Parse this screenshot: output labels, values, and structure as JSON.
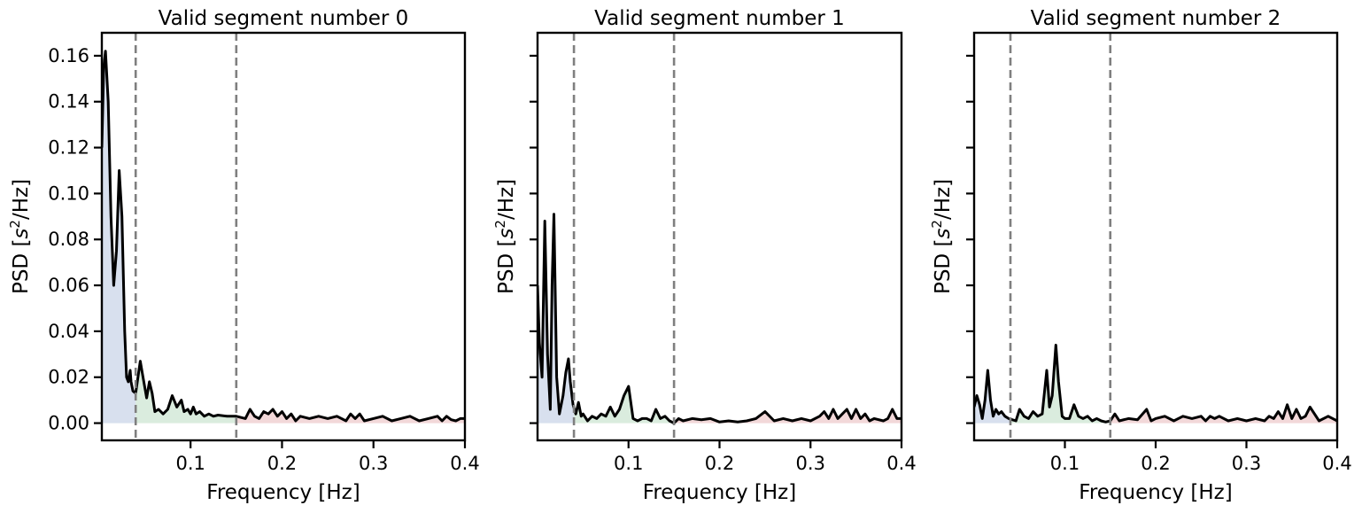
{
  "colors": {
    "psd_line": "#000000",
    "vlf_fill": "#4c72b0",
    "lf_fill": "#55a868",
    "hf_fill": "#c44e52",
    "band_line": "#7f7f7f"
  },
  "axis_text": {
    "ylabel_prefix": "PSD [",
    "ylabel_base": "s",
    "ylabel_sup": "2",
    "ylabel_suffix": "/Hz]"
  },
  "chart_data": [
    {
      "type": "line",
      "title": "Valid segment number 0",
      "xlabel": "Frequency [Hz]",
      "ylabel": "PSD [s^2/Hz]",
      "xlim": [
        0.003,
        0.4
      ],
      "ylim": [
        -0.0075,
        0.17
      ],
      "xticks": [
        0.1,
        0.2,
        0.3,
        0.4
      ],
      "xtick_labels": [
        "0.1",
        "0.2",
        "0.3",
        "0.4"
      ],
      "yticks": [
        0.0,
        0.02,
        0.04,
        0.06,
        0.08,
        0.1,
        0.12,
        0.14,
        0.16
      ],
      "ytick_labels": [
        "0.00",
        "0.02",
        "0.04",
        "0.06",
        "0.08",
        "0.10",
        "0.12",
        "0.14",
        "0.16"
      ],
      "band_boundaries": [
        0.04,
        0.15
      ],
      "series": [
        {
          "x": [
            0.003,
            0.005,
            0.007,
            0.01,
            0.013,
            0.016,
            0.019,
            0.022,
            0.025,
            0.028,
            0.03,
            0.032,
            0.034,
            0.035,
            0.037,
            0.04,
            0.045,
            0.048,
            0.052,
            0.055,
            0.058,
            0.061,
            0.065,
            0.07,
            0.075,
            0.08,
            0.085,
            0.09,
            0.093,
            0.097,
            0.1,
            0.103,
            0.106,
            0.11,
            0.115,
            0.12,
            0.125,
            0.13,
            0.14,
            0.15,
            0.16,
            0.165,
            0.17,
            0.175,
            0.18,
            0.185,
            0.19,
            0.195,
            0.2,
            0.205,
            0.21,
            0.215,
            0.22,
            0.23,
            0.24,
            0.25,
            0.26,
            0.27,
            0.275,
            0.28,
            0.285,
            0.29,
            0.3,
            0.31,
            0.32,
            0.33,
            0.34,
            0.35,
            0.36,
            0.37,
            0.375,
            0.38,
            0.385,
            0.39,
            0.395,
            0.4
          ],
          "y": [
            0.12,
            0.155,
            0.162,
            0.14,
            0.09,
            0.06,
            0.075,
            0.11,
            0.09,
            0.04,
            0.02,
            0.018,
            0.023,
            0.018,
            0.014,
            0.013,
            0.027,
            0.02,
            0.011,
            0.018,
            0.013,
            0.005,
            0.006,
            0.004,
            0.006,
            0.012,
            0.007,
            0.01,
            0.005,
            0.006,
            0.004,
            0.007,
            0.004,
            0.005,
            0.003,
            0.004,
            0.003,
            0.0035,
            0.003,
            0.003,
            0.002,
            0.006,
            0.003,
            0.002,
            0.005,
            0.004,
            0.006,
            0.003,
            0.005,
            0.002,
            0.004,
            0.001,
            0.003,
            0.002,
            0.003,
            0.002,
            0.003,
            0.001,
            0.004,
            0.002,
            0.004,
            0.001,
            0.002,
            0.003,
            0.001,
            0.002,
            0.003,
            0.001,
            0.002,
            0.003,
            0.001,
            0.003,
            0.0015,
            0.001,
            0.002,
            0.002
          ]
        }
      ]
    },
    {
      "type": "line",
      "title": "Valid segment number 1",
      "xlabel": "Frequency [Hz]",
      "ylabel": "PSD [s^2/Hz]",
      "xlim": [
        0.0,
        0.4
      ],
      "ylim": [
        -0.0075,
        0.17
      ],
      "xticks": [
        0.1,
        0.2,
        0.3,
        0.4
      ],
      "xtick_labels": [
        "0.1",
        "0.2",
        "0.3",
        "0.4"
      ],
      "yticks": [
        0.0,
        0.02,
        0.04,
        0.06,
        0.08,
        0.1,
        0.12,
        0.14,
        0.16
      ],
      "ytick_labels": [],
      "band_boundaries": [
        0.04,
        0.15
      ],
      "series": [
        {
          "x": [
            0.0,
            0.002,
            0.005,
            0.008,
            0.011,
            0.014,
            0.016,
            0.018,
            0.021,
            0.024,
            0.028,
            0.031,
            0.034,
            0.036,
            0.039,
            0.042,
            0.045,
            0.048,
            0.05,
            0.055,
            0.06,
            0.065,
            0.07,
            0.075,
            0.08,
            0.085,
            0.09,
            0.095,
            0.1,
            0.105,
            0.11,
            0.115,
            0.12,
            0.125,
            0.13,
            0.135,
            0.14,
            0.145,
            0.15,
            0.155,
            0.16,
            0.17,
            0.18,
            0.19,
            0.2,
            0.21,
            0.22,
            0.23,
            0.24,
            0.25,
            0.26,
            0.27,
            0.28,
            0.29,
            0.3,
            0.31,
            0.315,
            0.32,
            0.325,
            0.33,
            0.335,
            0.34,
            0.345,
            0.35,
            0.355,
            0.36,
            0.365,
            0.37,
            0.38,
            0.385,
            0.39,
            0.395,
            0.4
          ],
          "y": [
            0.06,
            0.035,
            0.02,
            0.088,
            0.03,
            0.006,
            0.06,
            0.091,
            0.02,
            0.004,
            0.012,
            0.022,
            0.028,
            0.018,
            0.008,
            0.004,
            0.009,
            0.003,
            0.004,
            0.001,
            0.003,
            0.002,
            0.004,
            0.003,
            0.007,
            0.003,
            0.006,
            0.012,
            0.016,
            0.002,
            0.001,
            0.002,
            0.002,
            0.001,
            0.006,
            0.002,
            0.003,
            0.001,
            0.0,
            0.002,
            0.001,
            0.002,
            0.0015,
            0.002,
            0.0005,
            0.001,
            0.0005,
            0.001,
            0.002,
            0.005,
            0.001,
            0.002,
            0.001,
            0.002,
            0.001,
            0.003,
            0.005,
            0.002,
            0.006,
            0.002,
            0.004,
            0.006,
            0.002,
            0.006,
            0.002,
            0.004,
            0.001,
            0.002,
            0.001,
            0.002,
            0.006,
            0.002,
            0.002
          ]
        }
      ]
    },
    {
      "type": "line",
      "title": "Valid segment number 2",
      "xlabel": "Frequency [Hz]",
      "ylabel": "PSD [s^2/Hz]",
      "xlim": [
        0.0,
        0.4
      ],
      "ylim": [
        -0.0075,
        0.17
      ],
      "xticks": [
        0.1,
        0.2,
        0.3,
        0.4
      ],
      "xtick_labels": [
        "0.1",
        "0.2",
        "0.3",
        "0.4"
      ],
      "yticks": [
        0.0,
        0.02,
        0.04,
        0.06,
        0.08,
        0.1,
        0.12,
        0.14,
        0.16
      ],
      "ytick_labels": [],
      "band_boundaries": [
        0.04,
        0.15
      ],
      "series": [
        {
          "x": [
            0.0,
            0.003,
            0.006,
            0.009,
            0.012,
            0.015,
            0.018,
            0.021,
            0.024,
            0.027,
            0.03,
            0.034,
            0.038,
            0.042,
            0.046,
            0.05,
            0.055,
            0.06,
            0.065,
            0.07,
            0.075,
            0.08,
            0.083,
            0.086,
            0.09,
            0.093,
            0.097,
            0.1,
            0.105,
            0.11,
            0.115,
            0.12,
            0.125,
            0.13,
            0.135,
            0.14,
            0.145,
            0.15,
            0.155,
            0.16,
            0.17,
            0.18,
            0.19,
            0.195,
            0.2,
            0.21,
            0.22,
            0.23,
            0.24,
            0.25,
            0.255,
            0.26,
            0.265,
            0.27,
            0.28,
            0.29,
            0.3,
            0.31,
            0.32,
            0.325,
            0.33,
            0.335,
            0.34,
            0.345,
            0.35,
            0.355,
            0.36,
            0.365,
            0.37,
            0.38,
            0.39,
            0.4
          ],
          "y": [
            0.007,
            0.012,
            0.008,
            0.002,
            0.01,
            0.023,
            0.01,
            0.003,
            0.006,
            0.004,
            0.005,
            0.003,
            0.002,
            0.0015,
            0.001,
            0.006,
            0.003,
            0.002,
            0.005,
            0.003,
            0.004,
            0.023,
            0.007,
            0.012,
            0.034,
            0.018,
            0.003,
            0.002,
            0.002,
            0.008,
            0.003,
            0.002,
            0.003,
            0.001,
            0.002,
            0.001,
            0.0005,
            0.001,
            0.004,
            0.001,
            0.002,
            0.0015,
            0.006,
            0.001,
            0.002,
            0.003,
            0.001,
            0.003,
            0.002,
            0.003,
            0.001,
            0.003,
            0.002,
            0.003,
            0.001,
            0.002,
            0.001,
            0.002,
            0.001,
            0.003,
            0.002,
            0.005,
            0.002,
            0.008,
            0.002,
            0.006,
            0.002,
            0.003,
            0.007,
            0.001,
            0.003,
            0.001
          ]
        }
      ]
    }
  ]
}
